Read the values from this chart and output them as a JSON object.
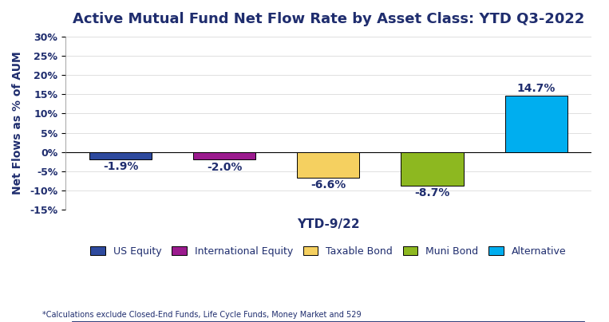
{
  "title": "Active Mutual Fund Net Flow Rate by Asset Class: YTD Q3-2022",
  "categories": [
    "US Equity",
    "International Equity",
    "Taxable Bond",
    "Muni Bond",
    "Alternative"
  ],
  "values": [
    -1.9,
    -2.0,
    -6.6,
    -8.7,
    14.7
  ],
  "bar_colors": [
    "#2E4A9E",
    "#9B1B8E",
    "#F5D060",
    "#8DB820",
    "#00AEEF"
  ],
  "xlabel": "YTD-9/22",
  "ylabel": "Net Flows as % of AUM",
  "ylim": [
    -15,
    30
  ],
  "yticks": [
    -15,
    -10,
    -5,
    0,
    5,
    10,
    15,
    20,
    25,
    30
  ],
  "ytick_labels": [
    "-15%",
    "-10%",
    "-5%",
    "0%",
    "5%",
    "10%",
    "15%",
    "20%",
    "25%",
    "30%"
  ],
  "footnote": "*Calculations exclude Closed-End Funds, Life Cycle Funds, Money Market and 529",
  "title_fontsize": 13,
  "label_fontsize": 10,
  "tick_fontsize": 9,
  "legend_fontsize": 9,
  "footnote_fontsize": 7,
  "bar_width": 0.6,
  "background_color": "#FFFFFF",
  "title_color": "#1F2D6E",
  "axis_label_color": "#1F2D6E",
  "tick_color": "#1F2D6E",
  "xlabel_color": "#1F2D6E",
  "value_label_color": "#1F2D6E"
}
